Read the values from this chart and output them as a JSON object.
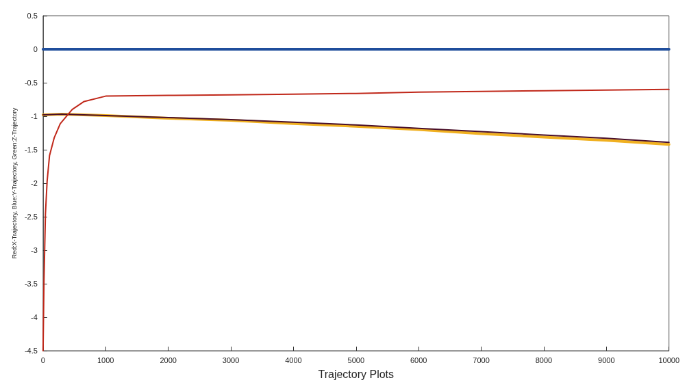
{
  "chart_data": {
    "type": "line",
    "xlabel": "Trajectory Plots",
    "ylabel": "Red:X-Trajectory, Blue:Y-Trajectory, Green:Z-Trajectory",
    "xlim": [
      0,
      10000
    ],
    "ylim": [
      -4.5,
      0.5
    ],
    "xticks": [
      0,
      1000,
      2000,
      3000,
      4000,
      5000,
      6000,
      7000,
      8000,
      9000,
      10000
    ],
    "yticks": [
      -4.5,
      -4,
      -3.5,
      -3,
      -2.5,
      -2,
      -1.5,
      -1,
      -0.5,
      0,
      0.5
    ],
    "grid": false,
    "marker": "none",
    "line_style": "solid",
    "series": [
      {
        "color": "#1f4e9c",
        "x": [
          0,
          10000
        ],
        "values": [
          0,
          0
        ]
      },
      {
        "color": "#f0b020",
        "x": [
          0,
          300,
          1000,
          2000,
          3000,
          4000,
          5000,
          6000,
          7000,
          8000,
          9000,
          10000
        ],
        "values": [
          -0.98,
          -0.97,
          -0.99,
          -1.03,
          -1.06,
          -1.11,
          -1.15,
          -1.2,
          -1.26,
          -1.31,
          -1.36,
          -1.42
        ]
      },
      {
        "color": "#4a0f2a",
        "x": [
          0,
          300,
          1000,
          2000,
          3000,
          4000,
          5000,
          6000,
          7000,
          8000,
          9000,
          10000
        ],
        "values": [
          -0.98,
          -0.97,
          -0.99,
          -1.02,
          -1.05,
          -1.09,
          -1.13,
          -1.18,
          -1.23,
          -1.28,
          -1.33,
          -1.39
        ]
      },
      {
        "color": "#c0281a",
        "x": [
          0,
          8,
          15,
          27,
          38,
          65,
          103,
          179,
          275,
          466,
          656,
          1000,
          2000,
          3000,
          4000,
          5000,
          6000,
          7000,
          8000,
          9000,
          10000
        ],
        "values": [
          -4.5,
          -3.95,
          -3.47,
          -2.95,
          -2.46,
          -1.97,
          -1.59,
          -1.32,
          -1.11,
          -0.9,
          -0.78,
          -0.7,
          -0.69,
          -0.68,
          -0.67,
          -0.66,
          -0.64,
          -0.63,
          -0.62,
          -0.61,
          -0.6
        ]
      }
    ]
  }
}
